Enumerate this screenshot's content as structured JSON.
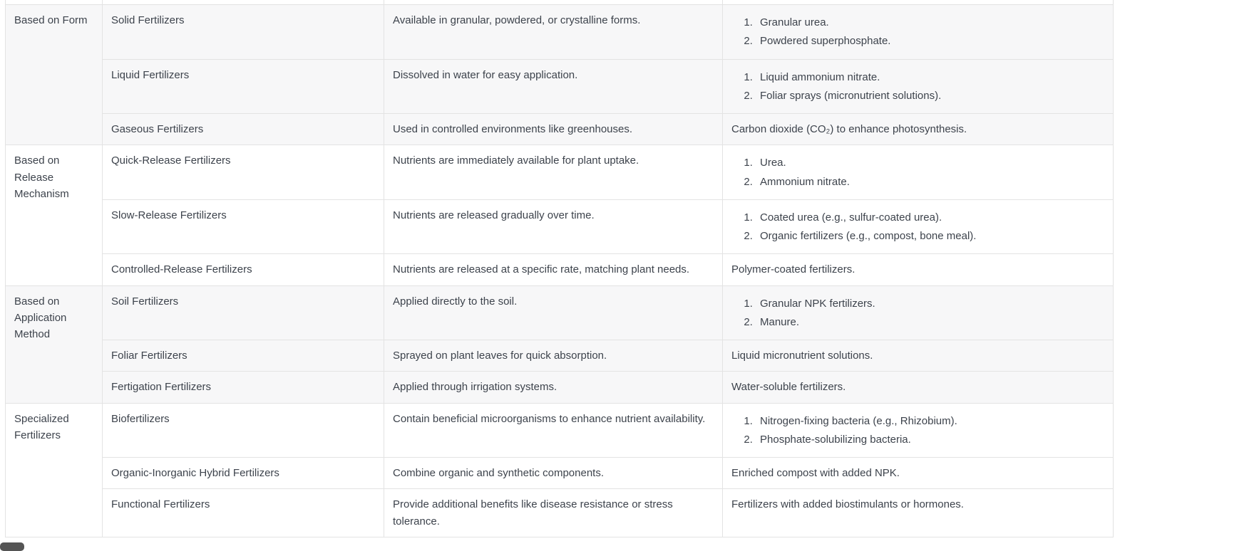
{
  "theme": {
    "stripe_color": "#f7f7f8",
    "border_color": "#e3e3e3",
    "text_color": "#3d434c",
    "scrollbar_thumb_color": "#555555",
    "background_color": "#ffffff"
  },
  "table": {
    "groups": [
      {
        "category": "Based on Form",
        "rows": [
          {
            "type": "Solid Fertilizers",
            "description": "Available in granular, powdered, or crystalline forms.",
            "examples": [
              "Granular urea.",
              "Powdered superphosphate."
            ]
          },
          {
            "type": "Liquid Fertilizers",
            "description": "Dissolved in water for easy application.",
            "examples": [
              "Liquid ammonium nitrate.",
              "Foliar sprays (micronutrient solutions)."
            ]
          },
          {
            "type": "Gaseous Fertilizers",
            "description": "Used in controlled environments like greenhouses.",
            "examples": [
              "Carbon dioxide (CO₂) to enhance photosynthesis."
            ]
          }
        ]
      },
      {
        "category": "Based on Release Mechanism",
        "rows": [
          {
            "type": "Quick-Release Fertilizers",
            "description": "Nutrients are immediately available for plant uptake.",
            "examples": [
              "Urea.",
              "Ammonium nitrate."
            ]
          },
          {
            "type": "Slow-Release Fertilizers",
            "description": "Nutrients are released gradually over time.",
            "examples": [
              "Coated urea (e.g., sulfur-coated urea).",
              "Organic fertilizers (e.g., compost, bone meal)."
            ]
          },
          {
            "type": "Controlled-Release Fertilizers",
            "description": "Nutrients are released at a specific rate, matching plant needs.",
            "examples": [
              "Polymer-coated fertilizers."
            ]
          }
        ]
      },
      {
        "category": "Based on Application Method",
        "rows": [
          {
            "type": "Soil Fertilizers",
            "description": "Applied directly to the soil.",
            "examples": [
              "Granular NPK fertilizers.",
              "Manure."
            ]
          },
          {
            "type": "Foliar Fertilizers",
            "description": "Sprayed on plant leaves for quick absorption.",
            "examples": [
              "Liquid micronutrient solutions."
            ]
          },
          {
            "type": "Fertigation Fertilizers",
            "description": "Applied through irrigation systems.",
            "examples": [
              "Water-soluble fertilizers."
            ]
          }
        ]
      },
      {
        "category": "Specialized Fertilizers",
        "rows": [
          {
            "type": "Biofertilizers",
            "description": "Contain beneficial microorganisms to enhance nutrient availability.",
            "examples": [
              "Nitrogen-fixing bacteria (e.g., Rhizobium).",
              "Phosphate-solubilizing bacteria."
            ]
          },
          {
            "type": "Organic-Inorganic Hybrid Fertilizers",
            "description": "Combine organic and synthetic components.",
            "examples": [
              "Enriched compost with added NPK."
            ]
          },
          {
            "type": "Functional Fertilizers",
            "description": "Provide additional benefits like disease resistance or stress tolerance.",
            "examples": [
              "Fertilizers with added biostimulants or hormones."
            ]
          }
        ]
      }
    ]
  }
}
